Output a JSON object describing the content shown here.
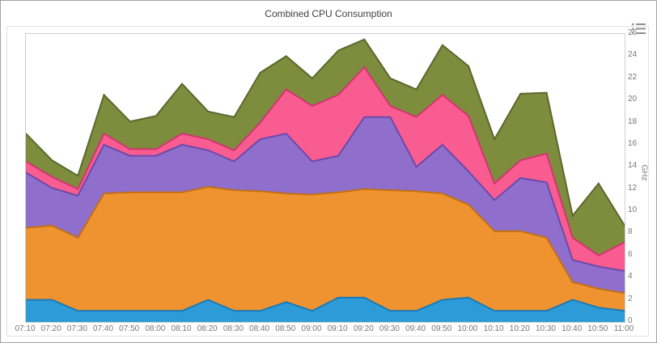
{
  "chart": {
    "title": "Combined CPU Consumption",
    "export_menu_icon": "export-menu-icon"
  },
  "chart_data": {
    "type": "area",
    "stacked": true,
    "title": "Combined CPU Consumption",
    "xlabel": "",
    "ylabel": "GHz",
    "ylim": [
      0,
      26
    ],
    "y_ticks": [
      0,
      2,
      4,
      6,
      8,
      10,
      12,
      14,
      16,
      18,
      20,
      22,
      24,
      26
    ],
    "legend": "none",
    "grid": false,
    "x": [
      "07:10",
      "07:20",
      "07:30",
      "07:40",
      "07:50",
      "08:00",
      "08:10",
      "08:20",
      "08:30",
      "08:40",
      "08:50",
      "09:00",
      "09:10",
      "09:20",
      "09:30",
      "09:40",
      "09:50",
      "10:00",
      "10:10",
      "10:20",
      "10:30",
      "10:40",
      "10:50",
      "11:00"
    ],
    "series": [
      {
        "name": "series-blue",
        "color": "#2d9bd8",
        "stroke": "#1b7ab5",
        "values": [
          2,
          2,
          1,
          1,
          1,
          1,
          1,
          2,
          1,
          1,
          1.8,
          1,
          2.2,
          2.2,
          1,
          1,
          2,
          2.2,
          1,
          1,
          1,
          2,
          1.3,
          1
        ]
      },
      {
        "name": "series-orange",
        "color": "#ef9330",
        "stroke": "#c26f15",
        "values": [
          6.5,
          6.7,
          6.6,
          10.6,
          10.7,
          10.7,
          10.7,
          10.2,
          10.9,
          10.8,
          9.8,
          10.5,
          9.5,
          9.8,
          10.9,
          10.8,
          9.6,
          8.4,
          7.2,
          7.2,
          6.6,
          1.6,
          1.7,
          1.6
        ]
      },
      {
        "name": "series-purple",
        "color": "#8f6fcb",
        "stroke": "#6b4aab",
        "values": [
          5,
          3.4,
          3.8,
          4.4,
          3.3,
          3.3,
          4.3,
          3.3,
          2.6,
          4.7,
          5.4,
          3,
          3.3,
          6.5,
          6.6,
          2.2,
          4.4,
          3,
          2.8,
          4.8,
          5,
          2,
          2,
          2
        ]
      },
      {
        "name": "series-pink",
        "color": "#f95c90",
        "stroke": "#d2356f",
        "values": [
          1,
          1,
          0.6,
          1,
          0.6,
          0.6,
          1,
          1,
          1,
          1.5,
          4,
          5,
          5.5,
          4.5,
          1,
          4.5,
          4.5,
          5,
          1.5,
          1.6,
          2.6,
          2,
          1,
          2.6
        ]
      },
      {
        "name": "series-olive",
        "color": "#7e8c3e",
        "stroke": "#5d672b",
        "values": [
          2.5,
          1.5,
          1.2,
          3.5,
          2.5,
          3,
          4.5,
          2.5,
          3,
          4.5,
          3,
          2.5,
          4,
          2.5,
          2.5,
          2.5,
          4.5,
          4.5,
          4,
          6,
          5.5,
          2,
          6.5,
          1.5
        ]
      }
    ]
  }
}
